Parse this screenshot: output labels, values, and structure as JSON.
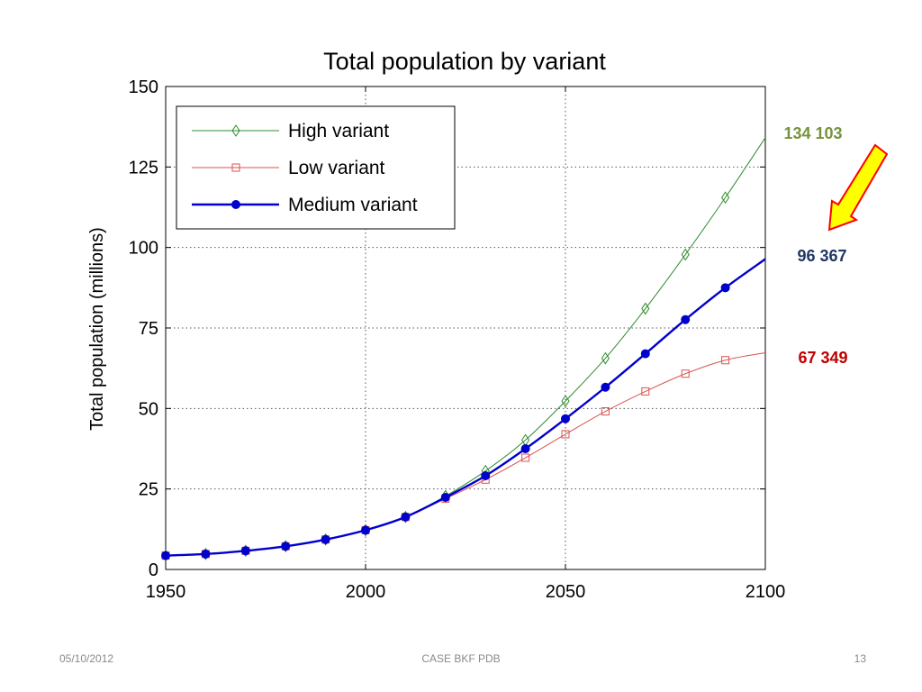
{
  "chart_data": {
    "type": "line",
    "title": "Total population by variant",
    "xlabel": "",
    "ylabel": "Total population (millions)",
    "xlim": [
      1950,
      2100
    ],
    "ylim": [
      0,
      150
    ],
    "x_ticks": [
      1950,
      2000,
      2050,
      2100
    ],
    "y_ticks": [
      0,
      25,
      50,
      75,
      100,
      125,
      150
    ],
    "grid": true,
    "legend_position": "top-left",
    "marker_x": [
      1950,
      1960,
      1970,
      1980,
      1990,
      2000,
      2010,
      2020,
      2030,
      2040,
      2050,
      2060,
      2070,
      2080,
      2090
    ],
    "series": [
      {
        "name": "High variant",
        "color": "#2e8b2e",
        "marker": "diamond",
        "x": [
          1950,
          1960,
          1970,
          1980,
          1990,
          2000,
          2010,
          2020,
          2030,
          2040,
          2050,
          2060,
          2070,
          2080,
          2090,
          2100
        ],
        "values": [
          4.3,
          4.8,
          5.8,
          7.2,
          9.3,
          12.2,
          16.3,
          22.8,
          30.6,
          40.2,
          52.3,
          65.6,
          81.0,
          97.8,
          115.5,
          134.1
        ]
      },
      {
        "name": "Low variant",
        "color": "#d9534f",
        "marker": "square",
        "x": [
          1950,
          1960,
          1970,
          1980,
          1990,
          2000,
          2010,
          2020,
          2030,
          2040,
          2050,
          2060,
          2070,
          2080,
          2090,
          2100
        ],
        "values": [
          4.3,
          4.8,
          5.8,
          7.2,
          9.3,
          12.2,
          16.3,
          22.0,
          27.9,
          34.7,
          42.0,
          49.1,
          55.3,
          60.8,
          65.0,
          67.3
        ]
      },
      {
        "name": "Medium variant",
        "color": "#0000cc",
        "marker": "dot",
        "x": [
          1950,
          1960,
          1970,
          1980,
          1990,
          2000,
          2010,
          2020,
          2030,
          2040,
          2050,
          2060,
          2070,
          2080,
          2090,
          2100
        ],
        "values": [
          4.3,
          4.8,
          5.8,
          7.2,
          9.3,
          12.2,
          16.3,
          22.4,
          29.1,
          37.5,
          46.8,
          56.6,
          67.0,
          77.6,
          87.5,
          96.4
        ]
      }
    ],
    "annotations": [
      {
        "text": "134 103",
        "series": "High variant",
        "color": "#76923c"
      },
      {
        "text": "96 367",
        "series": "Medium variant",
        "color": "#1f3864"
      },
      {
        "text": "67 349",
        "series": "Low variant",
        "color": "#c00000"
      }
    ]
  },
  "footer": {
    "date": "05/10/2012",
    "center": "CASE BKF PDB",
    "page": "13"
  }
}
